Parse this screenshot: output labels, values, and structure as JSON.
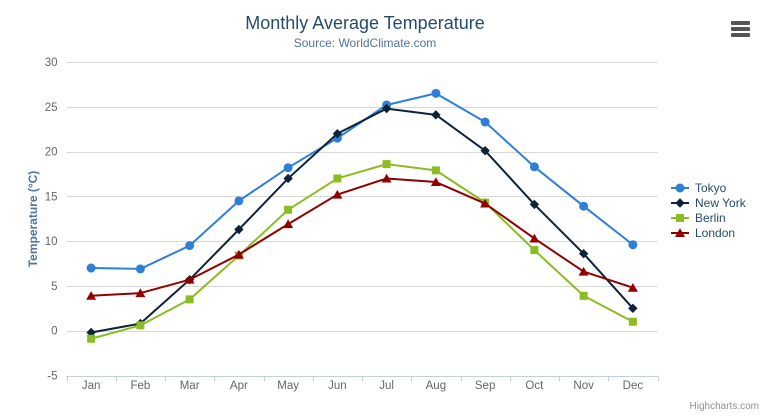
{
  "chart": {
    "title": "Monthly Average Temperature",
    "subtitle": "Source: WorldClimate.com",
    "credits": "Highcharts.com"
  },
  "icons": {
    "context_menu": "hamburger-icon"
  },
  "chart_data": {
    "type": "line",
    "title": "Monthly Average Temperature",
    "subtitle": "Source: WorldClimate.com",
    "categories": [
      "Jan",
      "Feb",
      "Mar",
      "Apr",
      "May",
      "Jun",
      "Jul",
      "Aug",
      "Sep",
      "Oct",
      "Nov",
      "Dec"
    ],
    "series": [
      {
        "name": "Tokyo",
        "color": "#2f7ed8",
        "marker": "circle",
        "values": [
          7.0,
          6.9,
          9.5,
          14.5,
          18.2,
          21.5,
          25.2,
          26.5,
          23.3,
          18.3,
          13.9,
          9.6
        ]
      },
      {
        "name": "New York",
        "color": "#0d233a",
        "marker": "diamond",
        "values": [
          -0.2,
          0.8,
          5.7,
          11.3,
          17.0,
          22.0,
          24.8,
          24.1,
          20.1,
          14.1,
          8.6,
          2.5
        ]
      },
      {
        "name": "Berlin",
        "color": "#8bbc21",
        "marker": "square",
        "values": [
          -0.9,
          0.6,
          3.5,
          8.4,
          13.5,
          17.0,
          18.6,
          17.9,
          14.3,
          9.0,
          3.9,
          1.0
        ]
      },
      {
        "name": "London",
        "color": "#910000",
        "marker": "triangle",
        "values": [
          3.9,
          4.2,
          5.7,
          8.5,
          11.9,
          15.2,
          17.0,
          16.6,
          14.2,
          10.3,
          6.6,
          4.8
        ]
      }
    ],
    "xlabel": "",
    "ylabel": "Temperature (°C)",
    "ylim": [
      -5,
      30
    ],
    "ytick_step": 5,
    "grid": "horizontal",
    "legend_position": "right",
    "legend": [
      "Tokyo",
      "New York",
      "Berlin",
      "London"
    ]
  },
  "theme": {
    "background": "#ffffff",
    "title_color": "#274b6d",
    "subtitle_color": "#4d759e",
    "axis_label_color": "#666666",
    "axis_title_color": "#4d759e",
    "grid_color": "#d8d8d8",
    "axis_line_color": "#c0d0e0",
    "legend_text_color": "#274b6d",
    "credits_color": "#909090",
    "menu_icon_color": "#555555"
  }
}
